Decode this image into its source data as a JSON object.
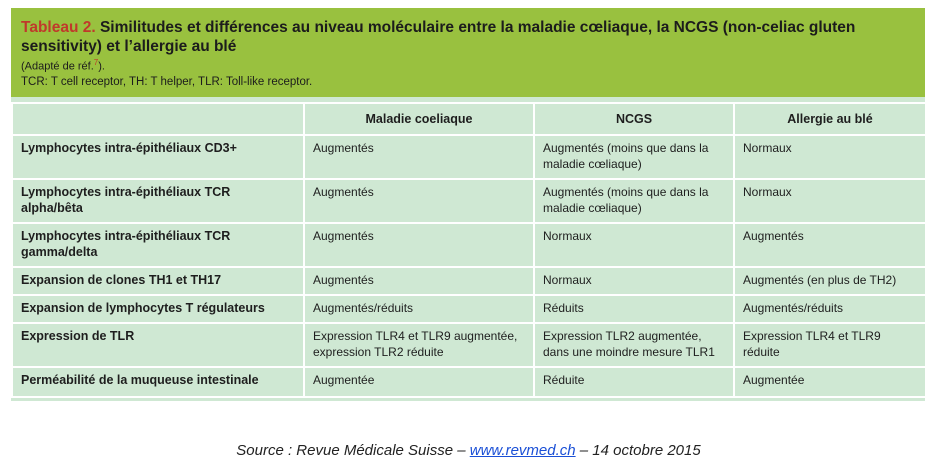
{
  "caption": {
    "label": "Tableau 2.",
    "title": "Similitudes et différences au niveau moléculaire entre la maladie cœliaque, la NCGS (non-celiac gluten sensitivity) et l’allergie au blé",
    "adapted": "(Adapté de réf.",
    "ref_number": "7",
    "adapted_end": ").",
    "abbreviations": "TCR: T cell receptor, TH: T helper, TLR: Toll-like receptor."
  },
  "table": {
    "headers": [
      "",
      "Maladie coeliaque",
      "NCGS",
      "Allergie au blé"
    ],
    "rows": [
      {
        "label": "Lymphocytes intra-épithéliaux CD3+",
        "values": [
          "Augmentés",
          "Augmentés (moins que dans la maladie cœliaque)",
          "Normaux"
        ]
      },
      {
        "label": "Lymphocytes intra-épithéliaux TCR alpha/bêta",
        "values": [
          "Augmentés",
          "Augmentés (moins que dans la maladie cœliaque)",
          "Normaux"
        ]
      },
      {
        "label": "Lymphocytes intra-épithéliaux TCR gamma/delta",
        "values": [
          "Augmentés",
          "Normaux",
          "Augmentés"
        ]
      },
      {
        "label": "Expansion de clones TH1 et TH17",
        "values": [
          "Augmentés",
          "Normaux",
          "Augmentés (en plus de TH2)"
        ]
      },
      {
        "label": "Expansion de lymphocytes T régulateurs",
        "values": [
          "Augmentés/réduits",
          "Réduits",
          "Augmentés/réduits"
        ]
      },
      {
        "label": "Expression de TLR",
        "values": [
          "Expression TLR4 et TLR9 augmentée, expression TLR2 réduite",
          "Expression TLR2 augmentée, dans une moindre mesure TLR1",
          "Expression TLR4 et TLR9 réduite"
        ]
      },
      {
        "label": "Perméabilité de la muqueuse intestinale",
        "values": [
          "Augmentée",
          "Réduite",
          "Augmentée"
        ]
      }
    ]
  },
  "source": {
    "prefix": "Source : Revue Médicale Suisse – ",
    "link": "www.revmed.ch",
    "suffix": " – 14 octobre 2015"
  },
  "colors": {
    "caption_bg": "#99c13f",
    "table_bg": "#cfe8d3",
    "accent_red": "#c0392b",
    "link_blue": "#1a4fd6"
  }
}
